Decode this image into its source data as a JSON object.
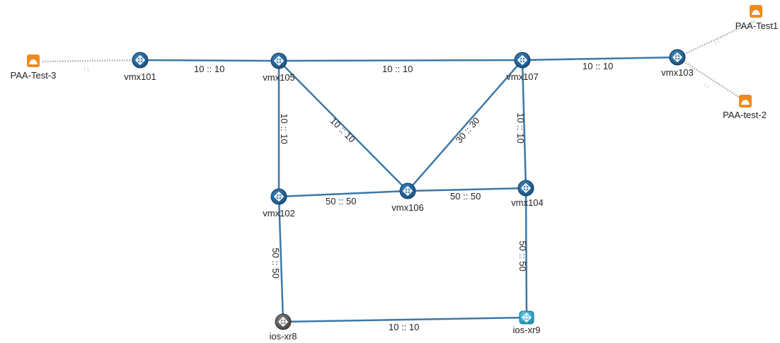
{
  "colors": {
    "link": "#3b78a6",
    "router": "#1f5c8f",
    "router_dark": "#5b5b5b",
    "router_cyan": "#2aa8c7",
    "probe": "#f08a1c",
    "probe_link": "#a8a8a8"
  },
  "nodes": {
    "vmx101": "vmx101",
    "vmx105": "vmx105",
    "vmx107": "vmx107",
    "vmx103": "vmx103",
    "vmx102": "vmx102",
    "vmx106": "vmx106",
    "vmx104": "vmx104",
    "iosxr8": "ios-xr8",
    "iosxr9": "ios-xr9",
    "paa_test3": "PAA-Test-3",
    "paa_test1": "PAA-Test1",
    "paa_test2": "PAA-test-2"
  },
  "links": {
    "vmx101_vmx105": "10 :: 10",
    "vmx105_vmx107": "10 :: 10",
    "vmx107_vmx103": "10 :: 10",
    "vmx105_vmx102": "10 :: 10",
    "vmx105_vmx106": "10 :: 10",
    "vmx107_vmx106": "30 :: 30",
    "vmx107_vmx104": "10 :: 10",
    "vmx102_vmx106": "50 :: 50",
    "vmx106_vmx104": "50 :: 50",
    "vmx102_iosxr8": "50 :: 50",
    "vmx104_iosxr9": "50 :: 50",
    "iosxr8_iosxr9": "10 :: 10"
  },
  "probe_links": {
    "separator": "::"
  },
  "icons": {
    "router": "router-icon",
    "probe": "probe-agent-icon"
  }
}
